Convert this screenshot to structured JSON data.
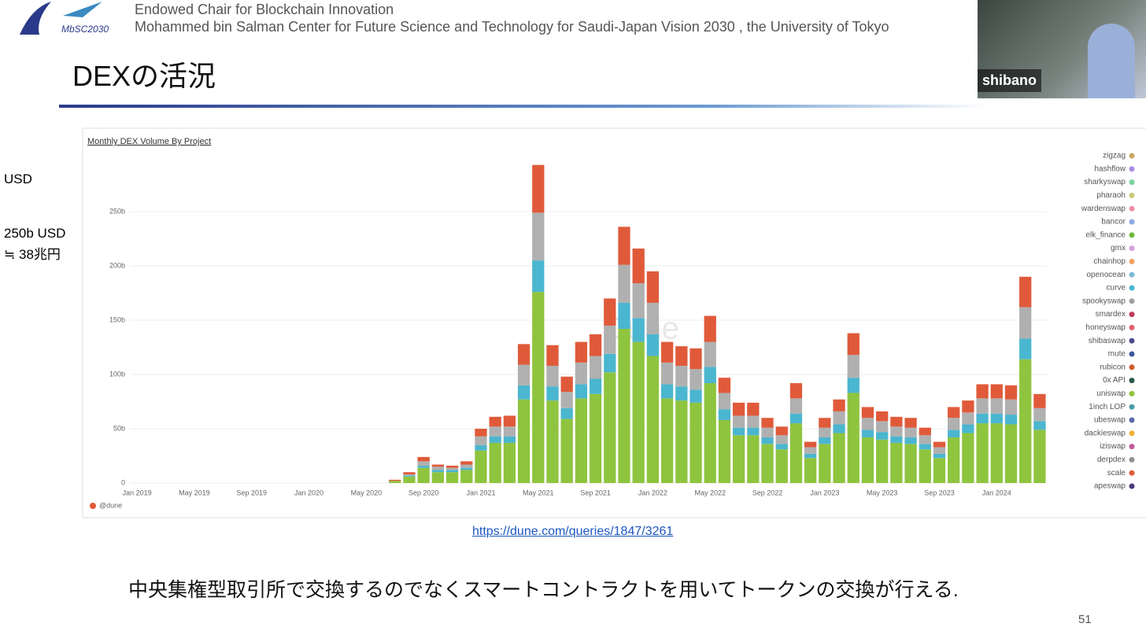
{
  "header": {
    "logo": "MbSC2030",
    "line1": "Endowed Chair for Blockchain Innovation",
    "line2": "Mohammed bin Salman Center for Future Science and Technology for Saudi-Japan Vision 2030 , the University of Tokyo"
  },
  "title": "DEXの活況",
  "participant": "shibano",
  "notes": [
    "USD",
    "250b USD",
    "≒ 38兆円"
  ],
  "chart_data": {
    "type": "bar",
    "stacked": true,
    "title": "Monthly DEX Volume By Project",
    "watermark": "Dune",
    "source": "@dune",
    "categories": [
      "Jan 2019",
      null,
      null,
      null,
      "May 2019",
      null,
      null,
      null,
      "Sep 2019",
      null,
      null,
      null,
      "Jan 2020",
      null,
      null,
      null,
      "May 2020",
      null,
      null,
      null,
      "Sep 2020",
      null,
      null,
      null,
      "Jan 2021",
      null,
      null,
      null,
      "May 2021",
      null,
      null,
      null,
      "Sep 2021",
      null,
      null,
      null,
      "Jan 2022",
      null,
      null,
      null,
      "May 2022",
      null,
      null,
      null,
      "Sep 2022",
      null,
      null,
      null,
      "Jan 2023",
      null,
      null,
      null,
      "May 2023",
      null,
      null,
      null,
      "Sep 2023",
      null,
      null,
      null,
      "Jan 2024",
      null,
      null,
      null
    ],
    "series": [
      {
        "color": "#8fc43f",
        "values": [
          0,
          0,
          0,
          0,
          0,
          0,
          0,
          0,
          0,
          0,
          0,
          0,
          0,
          0,
          0,
          0,
          0,
          0,
          2,
          6,
          14,
          10,
          10,
          12,
          30,
          37,
          37,
          77,
          176,
          76,
          59,
          78,
          82,
          102,
          142,
          130,
          117,
          78,
          76,
          74,
          92,
          58,
          44,
          44,
          36,
          31,
          55,
          23,
          36,
          46,
          83,
          42,
          40,
          37,
          36,
          31,
          23,
          42,
          46,
          55,
          55,
          54,
          114,
          49
        ]
      },
      {
        "color": "#4bb6cf",
        "values": [
          0,
          0,
          0,
          0,
          0,
          0,
          0,
          0,
          0,
          0,
          0,
          0,
          0,
          0,
          0,
          0,
          0,
          0,
          0,
          1,
          2,
          2,
          2,
          2,
          5,
          6,
          6,
          13,
          29,
          13,
          10,
          13,
          14,
          17,
          24,
          22,
          20,
          13,
          13,
          12,
          15,
          10,
          7,
          7,
          6,
          5,
          9,
          4,
          6,
          8,
          14,
          7,
          7,
          6,
          6,
          5,
          4,
          7,
          8,
          9,
          9,
          9,
          19,
          8
        ]
      },
      {
        "color": "#b0b0b0",
        "values": [
          0,
          0,
          0,
          0,
          0,
          0,
          0,
          0,
          0,
          0,
          0,
          0,
          0,
          0,
          0,
          0,
          0,
          0,
          0,
          1,
          4,
          3,
          2,
          3,
          8,
          9,
          9,
          19,
          44,
          19,
          15,
          20,
          21,
          26,
          35,
          32,
          29,
          20,
          19,
          19,
          23,
          15,
          11,
          11,
          9,
          8,
          14,
          6,
          9,
          12,
          21,
          11,
          10,
          9,
          9,
          8,
          6,
          11,
          11,
          14,
          14,
          14,
          29,
          12
        ]
      },
      {
        "color": "#e05a3a",
        "values": [
          0,
          0,
          0,
          0,
          0,
          0,
          0,
          0,
          0,
          0,
          0,
          0,
          0,
          0,
          0,
          0,
          0,
          0,
          1,
          2,
          4,
          2,
          2,
          3,
          7,
          9,
          10,
          19,
          44,
          19,
          14,
          19,
          20,
          25,
          35,
          32,
          29,
          19,
          18,
          19,
          24,
          14,
          12,
          12,
          9,
          8,
          14,
          5,
          9,
          11,
          20,
          10,
          9,
          9,
          9,
          7,
          5,
          10,
          11,
          13,
          13,
          13,
          28,
          13
        ]
      }
    ],
    "ylim": [
      0,
      300
    ],
    "yticks": [
      0,
      {
        "value": 50,
        "label": "50b"
      },
      {
        "value": 100,
        "label": "100b"
      },
      {
        "value": 150,
        "label": "150b"
      },
      {
        "value": 200,
        "label": "200b"
      },
      {
        "value": 250,
        "label": "250b"
      }
    ],
    "grid": true,
    "legend_position": "right",
    "legend": [
      {
        "name": "zigzag",
        "color": "#c8a860"
      },
      {
        "name": "hashflow",
        "color": "#a98de0"
      },
      {
        "name": "sharkyswap",
        "color": "#7bd3a0"
      },
      {
        "name": "pharaoh",
        "color": "#c9c97a"
      },
      {
        "name": "wardenswap",
        "color": "#f08fa8"
      },
      {
        "name": "bancor",
        "color": "#8fa8e8"
      },
      {
        "name": "elk_finance",
        "color": "#6fb83a"
      },
      {
        "name": "gmx",
        "color": "#d8a0e0"
      },
      {
        "name": "chainhop",
        "color": "#f0a060"
      },
      {
        "name": "openocean",
        "color": "#7fb8d8"
      },
      {
        "name": "curve",
        "color": "#4bb6cf"
      },
      {
        "name": "spookyswap",
        "color": "#a0a0a0"
      },
      {
        "name": "smardex",
        "color": "#c03a5a"
      },
      {
        "name": "honeyswap",
        "color": "#e06070"
      },
      {
        "name": "shibaswap",
        "color": "#4a4a8a"
      },
      {
        "name": "mute",
        "color": "#3a5a9a"
      },
      {
        "name": "rubicon",
        "color": "#d05a2a"
      },
      {
        "name": "0x API",
        "color": "#2a5a4a"
      },
      {
        "name": "uniswap",
        "color": "#8fc43f"
      },
      {
        "name": "1inch LOP",
        "color": "#4a9aaa"
      },
      {
        "name": "ubeswap",
        "color": "#5a6aaa"
      },
      {
        "name": "dackieswap",
        "color": "#f0b030"
      },
      {
        "name": "iziswap",
        "color": "#c05a9a"
      },
      {
        "name": "derpdex",
        "color": "#909090"
      },
      {
        "name": "scale",
        "color": "#e05a3a"
      },
      {
        "name": "apeswap",
        "color": "#4a3a7a"
      }
    ]
  },
  "link": "https://dune.com/queries/1847/3261",
  "caption": "中央集権型取引所で交換するのでなくスマートコントラクトを用いてトークンの交換が行える.",
  "page_number": "51"
}
